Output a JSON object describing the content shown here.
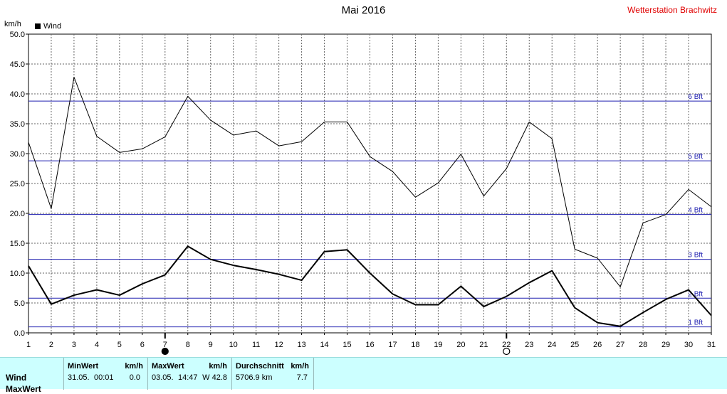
{
  "header": {
    "title": "Mai 2016",
    "station": "Wetterstation Brachwitz",
    "unit": "km/h",
    "legend": "Wind"
  },
  "chart_data": {
    "type": "line",
    "title": "Mai 2016",
    "ylabel": "km/h",
    "xlabel": "",
    "x": [
      1,
      2,
      3,
      4,
      5,
      6,
      7,
      8,
      9,
      10,
      11,
      12,
      13,
      14,
      15,
      16,
      17,
      18,
      19,
      20,
      21,
      22,
      23,
      24,
      25,
      26,
      27,
      28,
      29,
      30,
      31
    ],
    "xlim": [
      1,
      31
    ],
    "ylim": [
      0,
      50
    ],
    "yticks": [
      "0.0",
      "5.0",
      "10.0",
      "15.0",
      "20.0",
      "25.0",
      "30.0",
      "35.0",
      "40.0",
      "45.0",
      "50.0"
    ],
    "grid": true,
    "series": [
      {
        "name": "Wind",
        "role": "average",
        "values": [
          11.2,
          4.8,
          6.3,
          7.2,
          6.3,
          8.2,
          9.7,
          14.5,
          12.3,
          11.3,
          10.6,
          9.8,
          8.8,
          13.6,
          13.9,
          10.0,
          6.5,
          4.7,
          4.7,
          7.8,
          4.4,
          6.1,
          8.4,
          10.4,
          4.2,
          1.7,
          1.1,
          3.4,
          5.6,
          7.2,
          2.9
        ]
      },
      {
        "role": "maximum",
        "values": [
          31.9,
          20.8,
          42.8,
          32.9,
          30.2,
          30.8,
          32.8,
          39.6,
          35.6,
          33.1,
          33.8,
          31.3,
          32.0,
          35.3,
          35.3,
          29.5,
          27.0,
          22.7,
          25.1,
          29.9,
          22.9,
          27.5,
          35.3,
          32.5,
          14.0,
          12.5,
          7.7,
          18.4,
          19.8,
          24.0,
          21.1
        ]
      }
    ],
    "beaufort": [
      {
        "label": "1 Bft",
        "value": 1.0
      },
      {
        "label": "2 Bft",
        "value": 5.8
      },
      {
        "label": "3 Bft",
        "value": 12.3
      },
      {
        "label": "4 Bft",
        "value": 19.8
      },
      {
        "label": "5 Bft",
        "value": 28.8
      },
      {
        "label": "6 Bft",
        "value": 38.8
      }
    ],
    "moon": [
      {
        "day": 7,
        "phase": "full-moon"
      },
      {
        "day": 22,
        "phase": "new-moon"
      }
    ],
    "colors": {
      "beaufort": "#2020b0",
      "line": "#000000",
      "grid": "#666666"
    }
  },
  "stats": {
    "row_label": "Wind",
    "row2_label": "MaxWert",
    "min": {
      "header": "MinWert",
      "unit": "km/h",
      "date": "31.05.",
      "time": "00:01",
      "value": "0.0"
    },
    "max": {
      "header": "MaxWert",
      "unit": "km/h",
      "date": "03.05.",
      "time": "14:47",
      "value": "W 42.8"
    },
    "avg": {
      "header": "Durchschnitt",
      "unit": "km/h",
      "distance": "5706.9 km",
      "value": "7.7"
    }
  }
}
